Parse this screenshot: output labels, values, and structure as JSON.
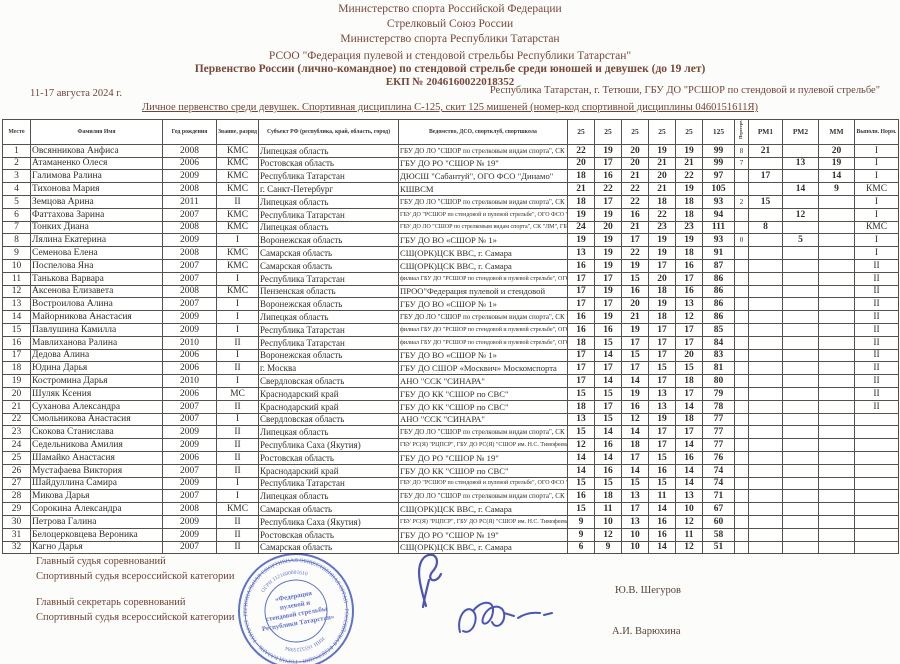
{
  "colors": {
    "header_text": "#77473a",
    "table_text": "#33302b",
    "stamp_blue": "#4a5fc4",
    "signature_blue": "#4a55b4"
  },
  "header": {
    "ministry1": "Министерство спорта Российской Федерации",
    "ministry2": "Стрелковый Союз России",
    "ministry3": "Министерство спорта Республики Татарстан",
    "federation": "РСОО \"Федерация пулевой и стендовой стрельбы Республики Татарстан\"",
    "title": "Первенство России (лично-командное) по стендовой стрельбе среди юношей и девушек (до 19 лет)",
    "ekp": "ЕКП № 2046160022018352",
    "dates": "11-17 августа 2024 г.",
    "venue": "Республика Татарстан, г. Тетюши, ГБУ ДО \"РСШОР по стендовой и пулевой стрельбе\"",
    "subtitle": "Личное первенство среди девушек. Спортивная дисциплина С-125, скит 125 мишеней (номер-код спортивной дисциплины 0460151611Я)"
  },
  "table": {
    "headers": {
      "place": "Место",
      "name": "Фамилия Имя",
      "year": "Год рождения",
      "rank": "Звание, разряд",
      "region": "Субъект РФ (республика, край, область, город)",
      "club": "Ведомство, ДСО, спортклуб, спортшкола",
      "s1": "25",
      "s2": "25",
      "s3": "25",
      "s4": "25",
      "s5": "25",
      "total": "125",
      "shootoff": "Перестрелка",
      "rm1": "РМ1",
      "rm2": "РМ2",
      "mm": "ММ",
      "norm": "Выполн. Норм."
    },
    "column_keys": [
      "place",
      "name",
      "year",
      "rank",
      "region",
      "club",
      "s1",
      "s2",
      "s3",
      "s4",
      "s5",
      "total",
      "shootoff",
      "rm1",
      "rm2",
      "mm",
      "norm"
    ],
    "rows": [
      {
        "place": "1",
        "name": "Овсянникова Анфиса",
        "year": "2008",
        "rank": "КМС",
        "region": "Липецкая область",
        "club": "ГБУ ДО ЛО \"СШОР по стрелковым видам спорта\", СК \"ЛМ\"",
        "s1": "22",
        "s2": "19",
        "s3": "20",
        "s4": "19",
        "s5": "19",
        "total": "99",
        "shootoff": "8",
        "rm1": "21",
        "rm2": "",
        "mm": "20",
        "norm": "I"
      },
      {
        "place": "2",
        "name": "Атаманенко Олеся",
        "year": "2006",
        "rank": "КМС",
        "region": "Ростовская область",
        "club": "ГБУ ДО РО \"СШОР № 19\"",
        "s1": "20",
        "s2": "17",
        "s3": "20",
        "s4": "21",
        "s5": "21",
        "total": "99",
        "shootoff": "7",
        "rm1": "",
        "rm2": "13",
        "mm": "19",
        "norm": "I"
      },
      {
        "place": "3",
        "name": "Галимова Ралина",
        "year": "2009",
        "rank": "КМС",
        "region": "Республика Татарстан",
        "club": "ДЮСШ \"Сабантуй\",  ОГО ФСО \"Динамо\"",
        "s1": "18",
        "s2": "16",
        "s3": "21",
        "s4": "20",
        "s5": "22",
        "total": "97",
        "shootoff": "",
        "rm1": "17",
        "rm2": "",
        "mm": "14",
        "norm": "I"
      },
      {
        "place": "4",
        "name": "Тихонова Мария",
        "year": "2008",
        "rank": "КМС",
        "region": "г. Санкт-Петербург",
        "club": "КШВСМ",
        "s1": "21",
        "s2": "22",
        "s3": "22",
        "s4": "21",
        "s5": "19",
        "total": "105",
        "shootoff": "",
        "rm1": "",
        "rm2": "14",
        "mm": "9",
        "norm": "КМС"
      },
      {
        "place": "5",
        "name": "Земцова Арина",
        "year": "2011",
        "rank": "II",
        "region": "Липецкая область",
        "club": "ГБУ ДО ЛО \"СШОР по стрелковым видам спорта\", СК \"ЛМ\"",
        "s1": "18",
        "s2": "17",
        "s3": "22",
        "s4": "18",
        "s5": "18",
        "total": "93",
        "shootoff": "2",
        "rm1": "15",
        "rm2": "",
        "mm": "",
        "norm": "I"
      },
      {
        "place": "6",
        "name": "Фаттахова Зарина",
        "year": "2007",
        "rank": "КМС",
        "region": "Республика Татарстан",
        "club": "ГБУ ДО \"РСШОР по стендовой и пулевой стрельбе\", ОГО ФСО \"Динамо\"",
        "s1": "19",
        "s2": "19",
        "s3": "16",
        "s4": "22",
        "s5": "18",
        "total": "94",
        "shootoff": "",
        "rm1": "",
        "rm2": "12",
        "mm": "",
        "norm": "I"
      },
      {
        "place": "7",
        "name": "Тонких Диана",
        "year": "2008",
        "rank": "КМС",
        "region": "Липецкая область",
        "club": "ГБУ ДО ЛО \"СШОР по стрелковым видам спорта\", СК \"ЛМ\", ГБУ ЛО \"ЦСП\"",
        "s1": "24",
        "s2": "20",
        "s3": "21",
        "s4": "23",
        "s5": "23",
        "total": "111",
        "shootoff": "",
        "rm1": "8",
        "rm2": "",
        "mm": "",
        "norm": "КМС"
      },
      {
        "place": "8",
        "name": "Лялина Екатерина",
        "year": "2009",
        "rank": "I",
        "region": "Воронежская область",
        "club": "ГБУ ДО ВО «СШОР № 1»",
        "s1": "19",
        "s2": "19",
        "s3": "17",
        "s4": "19",
        "s5": "19",
        "total": "93",
        "shootoff": "0",
        "rm1": "",
        "rm2": "5",
        "mm": "",
        "norm": "I"
      },
      {
        "place": "9",
        "name": "Семенова Елена",
        "year": "2008",
        "rank": "КМС",
        "region": "Самарская область",
        "club": "СШ(ОРК)ЦСК ВВС, г. Самара",
        "s1": "13",
        "s2": "19",
        "s3": "22",
        "s4": "19",
        "s5": "18",
        "total": "91",
        "shootoff": "",
        "rm1": "",
        "rm2": "",
        "mm": "",
        "norm": "I"
      },
      {
        "place": "10",
        "name": "Поспелова Яна",
        "year": "2007",
        "rank": "КМС",
        "region": "Самарская область",
        "club": "СШ(ОРК)ЦСК ВВС, г. Самара",
        "s1": "16",
        "s2": "19",
        "s3": "19",
        "s4": "17",
        "s5": "16",
        "total": "87",
        "shootoff": "",
        "rm1": "",
        "rm2": "",
        "mm": "",
        "norm": "II"
      },
      {
        "place": "11",
        "name": "Танькова Варвара",
        "year": "2007",
        "rank": "I",
        "region": "Республика Татарстан",
        "club": "филиал ГБУ ДО \"РСШОР по стендовой и пулевой стрельбе\", ОГО ФСО \"Динамо\"",
        "s1": "17",
        "s2": "17",
        "s3": "15",
        "s4": "20",
        "s5": "17",
        "total": "86",
        "shootoff": "",
        "rm1": "",
        "rm2": "",
        "mm": "",
        "norm": "II"
      },
      {
        "place": "12",
        "name": "Аксенова Елизавета",
        "year": "2008",
        "rank": "КМС",
        "region": "Пензенская область",
        "club": "ПРОО\"Федерация пулевой и стендовой",
        "s1": "17",
        "s2": "19",
        "s3": "16",
        "s4": "18",
        "s5": "16",
        "total": "86",
        "shootoff": "",
        "rm1": "",
        "rm2": "",
        "mm": "",
        "norm": "II"
      },
      {
        "place": "13",
        "name": "Востроилова Алина",
        "year": "2007",
        "rank": "I",
        "region": "Воронежская область",
        "club": "ГБУ ДО ВО «СШОР № 1»",
        "s1": "17",
        "s2": "17",
        "s3": "20",
        "s4": "19",
        "s5": "13",
        "total": "86",
        "shootoff": "",
        "rm1": "",
        "rm2": "",
        "mm": "",
        "norm": "II"
      },
      {
        "place": "14",
        "name": "Майорникова Анастасия",
        "year": "2009",
        "rank": "I",
        "region": "Липецкая область",
        "club": "ГБУ ДО ЛО \"СШОР по стрелковым видам спорта\", СК \"ЛМ\"",
        "s1": "16",
        "s2": "19",
        "s3": "21",
        "s4": "18",
        "s5": "12",
        "total": "86",
        "shootoff": "",
        "rm1": "",
        "rm2": "",
        "mm": "",
        "norm": "II"
      },
      {
        "place": "15",
        "name": "Павлушина Камилла",
        "year": "2009",
        "rank": "I",
        "region": "Республика Татарстан",
        "club": "филиал ГБУ ДО \"РСШОР по стендовой и пулевой стрельбе\", ОГО ФСО \"Динамо\"",
        "s1": "16",
        "s2": "16",
        "s3": "19",
        "s4": "17",
        "s5": "17",
        "total": "85",
        "shootoff": "",
        "rm1": "",
        "rm2": "",
        "mm": "",
        "norm": "II"
      },
      {
        "place": "16",
        "name": "Мавлиханова Ралина",
        "year": "2010",
        "rank": "II",
        "region": "Республика Татарстан",
        "club": "филиал ГБУ ДО \"РСШОР по стендовой и пулевой стрельбе\", ОГО ФСО \"Динамо\"",
        "s1": "18",
        "s2": "15",
        "s3": "17",
        "s4": "17",
        "s5": "17",
        "total": "84",
        "shootoff": "",
        "rm1": "",
        "rm2": "",
        "mm": "",
        "norm": "II"
      },
      {
        "place": "17",
        "name": "Дедова Алина",
        "year": "2006",
        "rank": "I",
        "region": "Воронежская область",
        "club": "ГБУ ДО ВО «СШОР № 1»",
        "s1": "17",
        "s2": "14",
        "s3": "15",
        "s4": "17",
        "s5": "20",
        "total": "83",
        "shootoff": "",
        "rm1": "",
        "rm2": "",
        "mm": "",
        "norm": "II"
      },
      {
        "place": "18",
        "name": "Юдина Дарья",
        "year": "2006",
        "rank": "II",
        "region": "г. Москва",
        "club": "ГБУ ДО СШОР «Москвич» Москомспорта",
        "s1": "17",
        "s2": "17",
        "s3": "17",
        "s4": "15",
        "s5": "15",
        "total": "81",
        "shootoff": "",
        "rm1": "",
        "rm2": "",
        "mm": "",
        "norm": "II"
      },
      {
        "place": "19",
        "name": "Костромина Дарья",
        "year": "2010",
        "rank": "I",
        "region": "Свердловская область",
        "club": "АНО \"ССК \"СИНАРА\"",
        "s1": "17",
        "s2": "14",
        "s3": "14",
        "s4": "17",
        "s5": "18",
        "total": "80",
        "shootoff": "",
        "rm1": "",
        "rm2": "",
        "mm": "",
        "norm": "II"
      },
      {
        "place": "20",
        "name": "Шуляк Ксения",
        "year": "2006",
        "rank": "МС",
        "region": "Краснодарский край",
        "club": "ГБУ ДО КК \"СШОР по СВС\"",
        "s1": "15",
        "s2": "15",
        "s3": "19",
        "s4": "13",
        "s5": "17",
        "total": "79",
        "shootoff": "",
        "rm1": "",
        "rm2": "",
        "mm": "",
        "norm": "II"
      },
      {
        "place": "21",
        "name": "Суханова Александра",
        "year": "2007",
        "rank": "II",
        "region": "Краснодарский край",
        "club": "ГБУ ДО КК \"СШОР по СВС\"",
        "s1": "18",
        "s2": "17",
        "s3": "16",
        "s4": "13",
        "s5": "14",
        "total": "78",
        "shootoff": "",
        "rm1": "",
        "rm2": "",
        "mm": "",
        "norm": "II"
      },
      {
        "place": "22",
        "name": "Смольникова Анастасия",
        "year": "2007",
        "rank": "I",
        "region": "Свердловская область",
        "club": "АНО \"ССК \"СИНАРА\"",
        "s1": "13",
        "s2": "15",
        "s3": "12",
        "s4": "19",
        "s5": "18",
        "total": "77",
        "shootoff": "",
        "rm1": "",
        "rm2": "",
        "mm": "",
        "norm": ""
      },
      {
        "place": "23",
        "name": "Скокова Станислава",
        "year": "2009",
        "rank": "II",
        "region": "Липецкая область",
        "club": "ГБУ ДО ЛО \"СШОР по стрелковым видам спорта\", СК \"ЛМ\"",
        "s1": "15",
        "s2": "14",
        "s3": "14",
        "s4": "17",
        "s5": "17",
        "total": "77",
        "shootoff": "",
        "rm1": "",
        "rm2": "",
        "mm": "",
        "norm": ""
      },
      {
        "place": "24",
        "name": "Седельникова Амилия",
        "year": "2009",
        "rank": "II",
        "region": "Республика Саха (Якутия)",
        "club": "ГБУ РС(Я) \"РЦПСР\", ГБУ ДО РС(Я) \"СШОР им. Н.С. Тимофеева\"",
        "s1": "12",
        "s2": "16",
        "s3": "18",
        "s4": "17",
        "s5": "14",
        "total": "77",
        "shootoff": "",
        "rm1": "",
        "rm2": "",
        "mm": "",
        "norm": ""
      },
      {
        "place": "25",
        "name": "Шамайко Анастасия",
        "year": "2006",
        "rank": "II",
        "region": "Ростовская область",
        "club": "ГБУ ДО РО \"СШОР № 19\"",
        "s1": "14",
        "s2": "14",
        "s3": "17",
        "s4": "15",
        "s5": "16",
        "total": "76",
        "shootoff": "",
        "rm1": "",
        "rm2": "",
        "mm": "",
        "norm": ""
      },
      {
        "place": "26",
        "name": "Мустафаева Виктория",
        "year": "2007",
        "rank": "II",
        "region": "Краснодарский край",
        "club": "ГБУ ДО КК \"СШОР по СВС\"",
        "s1": "14",
        "s2": "16",
        "s3": "14",
        "s4": "16",
        "s5": "14",
        "total": "74",
        "shootoff": "",
        "rm1": "",
        "rm2": "",
        "mm": "",
        "norm": ""
      },
      {
        "place": "27",
        "name": "Шайдуллина Самира",
        "year": "2009",
        "rank": "I",
        "region": "Республика Татарстан",
        "club": "ГБУ ДО \"РСШОР по стендовой и пулевой стрельбе\", ОГО ФСО \"Динамо\"",
        "s1": "15",
        "s2": "15",
        "s3": "15",
        "s4": "15",
        "s5": "14",
        "total": "74",
        "shootoff": "",
        "rm1": "",
        "rm2": "",
        "mm": "",
        "norm": ""
      },
      {
        "place": "28",
        "name": "Микова Дарья",
        "year": "2007",
        "rank": "I",
        "region": "Липецкая область",
        "club": "ГБУ ДО ЛО \"СШОР по стрелковым видам спорта\", СК \"ЛМ\"",
        "s1": "16",
        "s2": "18",
        "s3": "13",
        "s4": "11",
        "s5": "13",
        "total": "71",
        "shootoff": "",
        "rm1": "",
        "rm2": "",
        "mm": "",
        "norm": ""
      },
      {
        "place": "29",
        "name": "Сорокина Александра",
        "year": "2008",
        "rank": "КМС",
        "region": "Самарская область",
        "club": "СШ(ОРК)ЦСК ВВС, г. Самара",
        "s1": "15",
        "s2": "11",
        "s3": "17",
        "s4": "14",
        "s5": "10",
        "total": "67",
        "shootoff": "",
        "rm1": "",
        "rm2": "",
        "mm": "",
        "norm": ""
      },
      {
        "place": "30",
        "name": "Петрова Галина",
        "year": "2009",
        "rank": "II",
        "region": "Республика Саха (Якутия)",
        "club": "ГБУ РС(Я) \"РЦПСР\", ГБУ ДО РС(Я) \"СШОР им. Н.С. Тимофеева\"",
        "s1": "9",
        "s2": "10",
        "s3": "13",
        "s4": "16",
        "s5": "12",
        "total": "60",
        "shootoff": "",
        "rm1": "",
        "rm2": "",
        "mm": "",
        "norm": ""
      },
      {
        "place": "31",
        "name": "Белоцерковцева Вероника",
        "year": "2009",
        "rank": "II",
        "region": "Ростовская область",
        "club": "ГБУ ДО РО \"СШОР № 19\"",
        "s1": "9",
        "s2": "12",
        "s3": "10",
        "s4": "16",
        "s5": "11",
        "total": "58",
        "shootoff": "",
        "rm1": "",
        "rm2": "",
        "mm": "",
        "norm": ""
      },
      {
        "place": "32",
        "name": "Кагно Дарья",
        "year": "2007",
        "rank": "II",
        "region": "Самарская область",
        "club": "СШ(ОРК)ЦСК ВВС, г. Самара",
        "s1": "6",
        "s2": "9",
        "s3": "10",
        "s4": "14",
        "s5": "12",
        "total": "51",
        "shootoff": "",
        "rm1": "",
        "rm2": "",
        "mm": "",
        "norm": ""
      }
    ]
  },
  "footer": {
    "officials": [
      {
        "role": "Главный судья соревнований",
        "category": "Спортивный судья всероссийской категории",
        "name": "Ю.В. Шегуров"
      },
      {
        "role": "Главный секретарь соревнований",
        "category": "Спортивный судья всероссийской категории",
        "name": "А.И. Варюхина"
      }
    ]
  },
  "stamp": {
    "ring_outer_top": "РЕГИОНАЛЬНАЯ СПОРТИВНАЯ ОБЩЕСТВЕННАЯ ОРГАНИЗАЦИЯ",
    "ring_outer_bottom": "РОССИЙСКАЯ ФЕДЕРАЦИЯ • ГОРОД КАЗАНЬ • ТАТАРСТАН",
    "ring_inner_top": "ОГРН 1121600001610",
    "ring_inner_bottom": "ИНН 1655225984",
    "center_line1": "«Федерация",
    "center_line2": "пулевой и",
    "center_line3": "стендовой стрельбы",
    "center_line4": "Республики Татарстан»",
    "bottom_mark": "+"
  }
}
